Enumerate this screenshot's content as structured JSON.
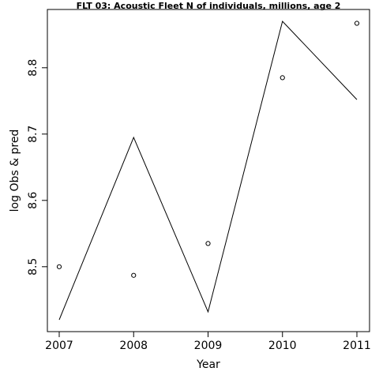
{
  "chart_data": {
    "type": "line",
    "title": "FLT 03: Acoustic Fleet  N of individuals, millions, age 2",
    "xlabel": "Year",
    "ylabel": "log Obs & pred",
    "x_ticks": [
      "2007",
      "2008",
      "2009",
      "2010",
      "2011"
    ],
    "y_ticks": [
      "8.5",
      "8.6",
      "8.7",
      "8.8"
    ],
    "xlim": [
      2007,
      2011
    ],
    "ylim": [
      8.42,
      8.87
    ],
    "grid": false,
    "series": [
      {
        "style": "line",
        "x": [
          2007,
          2008,
          2009,
          2010,
          2011
        ],
        "y": [
          8.42,
          8.695,
          8.432,
          8.87,
          8.752
        ]
      },
      {
        "style": "points",
        "marker": "open-circle",
        "x": [
          2007,
          2008,
          2009,
          2010,
          2011
        ],
        "y": [
          8.5,
          8.487,
          8.535,
          8.785,
          8.867
        ]
      }
    ]
  }
}
